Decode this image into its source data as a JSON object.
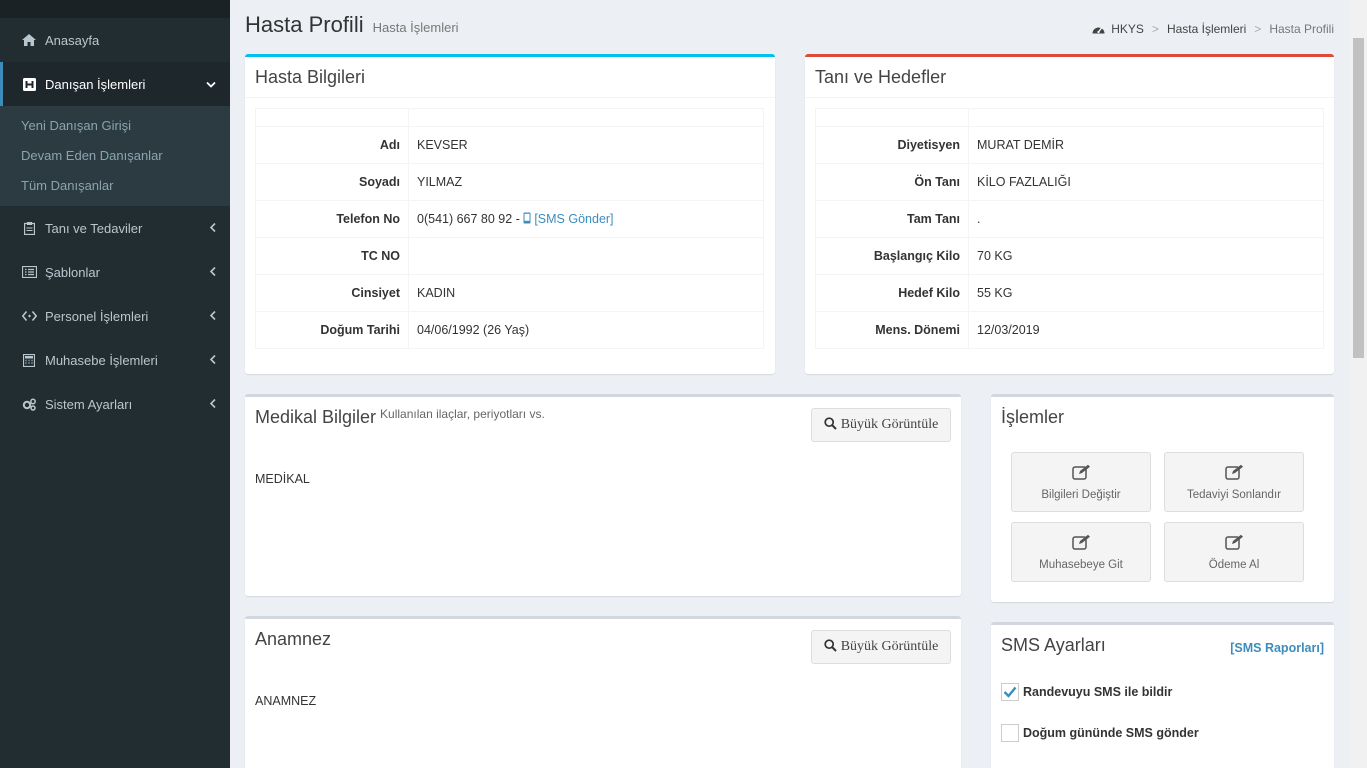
{
  "sidebar": {
    "items": [
      {
        "label": "Anasayfa"
      },
      {
        "label": "Danışan İşlemleri"
      },
      {
        "label": "Tanı ve Tedaviler"
      },
      {
        "label": "Şablonlar"
      },
      {
        "label": "Personel İşlemleri"
      },
      {
        "label": "Muhasebe İşlemleri"
      },
      {
        "label": "Sistem Ayarları"
      }
    ],
    "submenu": [
      {
        "label": "Yeni Danışan Girişi"
      },
      {
        "label": "Devam Eden Danışanlar"
      },
      {
        "label": "Tüm Danışanlar"
      }
    ]
  },
  "header": {
    "title": "Hasta Profili",
    "subtitle": "Hasta İşlemleri",
    "breadcrumb": [
      "HKYS",
      "Hasta İşlemleri",
      "Hasta Profili"
    ]
  },
  "patient": {
    "title": "Hasta Bilgileri",
    "rows": [
      {
        "label": "Adı",
        "value": "KEVSER"
      },
      {
        "label": "Soyadı",
        "value": "YILMAZ"
      },
      {
        "label": "Telefon No",
        "value": "0(541) 667 80 92 - "
      },
      {
        "label": "TC NO",
        "value": ""
      },
      {
        "label": "Cinsiyet",
        "value": "KADIN"
      },
      {
        "label": "Doğum Tarihi",
        "value": "04/06/1992 (26 Yaş)"
      }
    ],
    "sms_link": "[SMS Gönder]"
  },
  "diagnosis": {
    "title": "Tanı ve Hedefler",
    "rows": [
      {
        "label": "Diyetisyen",
        "value": "MURAT DEMİR"
      },
      {
        "label": "Ön Tanı",
        "value": "KİLO FAZLALIĞI"
      },
      {
        "label": "Tam Tanı",
        "value": "."
      },
      {
        "label": "Başlangıç Kilo",
        "value": "70 KG"
      },
      {
        "label": "Hedef Kilo",
        "value": "55 KG"
      },
      {
        "label": "Mens. Dönemi",
        "value": "12/03/2019"
      }
    ]
  },
  "medical": {
    "title": "Medikal Bilgiler",
    "subtitle": "Kullanılan ilaçlar, periyotları vs.",
    "button": "Büyük Görüntüle",
    "content": "MEDİKAL"
  },
  "anamnez": {
    "title": "Anamnez",
    "button": "Büyük Görüntüle",
    "content": "ANAMNEZ"
  },
  "actions": {
    "title": "İşlemler",
    "buttons": [
      {
        "label": "Bilgileri Değiştir"
      },
      {
        "label": "Tedaviyi Sonlandır"
      },
      {
        "label": "Muhasebeye Git"
      },
      {
        "label": "Ödeme Al"
      }
    ]
  },
  "sms": {
    "title": "SMS Ayarları",
    "report_link": "[SMS Raporları]",
    "options": [
      {
        "label": "Randevuyu SMS ile bildir",
        "checked": true
      },
      {
        "label": "Doğum gününde SMS gönder",
        "checked": false
      }
    ]
  },
  "colors": {
    "sidebar_bg": "#222d32",
    "accent": "#3c8dbc",
    "info_top": "#00c0ef",
    "danger_top": "#dd4b39"
  }
}
